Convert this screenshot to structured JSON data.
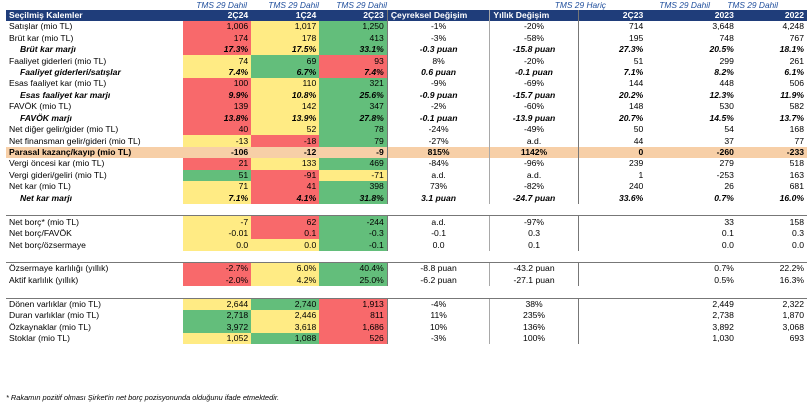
{
  "captions": {
    "c2q23": "TMS 29 Dahil",
    "c1q24": "TMS 29 Dahil",
    "c2q24": "TMS 29 Dahil",
    "c2q23h": "TMS 29 Hariç",
    "c2023": "TMS 29 Dahil",
    "c2022": "TMS 29 Dahil"
  },
  "header": [
    "Seçilmiş Kalemler",
    "2Ç24",
    "1Ç24",
    "2Ç23",
    "Çeyreksel Değişim",
    "Yıllık Değişim",
    "2Ç23",
    "2023",
    "2022"
  ],
  "rows": [
    {
      "label": "Satışlar (mio TL)",
      "v": [
        "1,006",
        "1,017",
        "1,250"
      ],
      "c": [
        "red",
        "yellow",
        "green"
      ],
      "q": "-1%",
      "y": "-20%",
      "h": [
        "714",
        "3,648",
        "4,248"
      ]
    },
    {
      "label": "Brüt kar (mio TL)",
      "v": [
        "174",
        "178",
        "413"
      ],
      "c": [
        "red",
        "yellow",
        "green"
      ],
      "q": "-3%",
      "y": "-58%",
      "h": [
        "195",
        "748",
        "767"
      ]
    },
    {
      "label": "Brüt kar marjı",
      "v": [
        "17.3%",
        "17.5%",
        "33.1%"
      ],
      "c": [
        "red",
        "yellow",
        "green"
      ],
      "q": "-0.3 puan",
      "y": "-15.8 puan",
      "h": [
        "27.3%",
        "20.5%",
        "18.1%"
      ],
      "bi": true
    },
    {
      "label": "Faaliyet giderleri (mio TL)",
      "v": [
        "74",
        "69",
        "93"
      ],
      "c": [
        "yellow",
        "green",
        "red"
      ],
      "q": "8%",
      "y": "-20%",
      "h": [
        "51",
        "299",
        "261"
      ]
    },
    {
      "label": "Faaliyet giderleri/satışlar",
      "v": [
        "7.4%",
        "6.7%",
        "7.4%"
      ],
      "c": [
        "yellow",
        "green",
        "red"
      ],
      "q": "0.6 puan",
      "y": "-0.1 puan",
      "h": [
        "7.1%",
        "8.2%",
        "6.1%"
      ],
      "bi": true
    },
    {
      "label": "Esas faaliyet kar (mio TL)",
      "v": [
        "100",
        "110",
        "321"
      ],
      "c": [
        "red",
        "yellow",
        "green"
      ],
      "q": "-9%",
      "y": "-69%",
      "h": [
        "144",
        "448",
        "506"
      ]
    },
    {
      "label": "Esas faaliyet kar marjı",
      "v": [
        "9.9%",
        "10.8%",
        "25.6%"
      ],
      "c": [
        "red",
        "yellow",
        "green"
      ],
      "q": "-0.9 puan",
      "y": "-15.7 puan",
      "h": [
        "20.2%",
        "12.3%",
        "11.9%"
      ],
      "bi": true
    },
    {
      "label": "FAVÖK (mio TL)",
      "v": [
        "139",
        "142",
        "347"
      ],
      "c": [
        "red",
        "yellow",
        "green"
      ],
      "q": "-2%",
      "y": "-60%",
      "h": [
        "148",
        "530",
        "582"
      ]
    },
    {
      "label": "FAVÖK marjı",
      "v": [
        "13.8%",
        "13.9%",
        "27.8%"
      ],
      "c": [
        "red",
        "yellow",
        "green"
      ],
      "q": "-0.1 puan",
      "y": "-13.9 puan",
      "h": [
        "20.7%",
        "14.5%",
        "13.7%"
      ],
      "bi": true
    },
    {
      "label": "Net diğer gelir/gider (mio TL)",
      "v": [
        "40",
        "52",
        "78"
      ],
      "c": [
        "red",
        "yellow",
        "green"
      ],
      "q": "-24%",
      "y": "-49%",
      "h": [
        "50",
        "54",
        "168"
      ]
    },
    {
      "label": "Net finansman gelir/gideri (mio TL)",
      "v": [
        "-13",
        "-18",
        "79"
      ],
      "c": [
        "yellow",
        "red",
        "green"
      ],
      "q": "-27%",
      "y": "a.d.",
      "h": [
        "44",
        "37",
        "77"
      ]
    },
    {
      "label": "Parasal kazanç/kayıp (mio TL)",
      "v": [
        "-106",
        "-12",
        "-9"
      ],
      "c": [
        "",
        "",
        ""
      ],
      "q": "815%",
      "y": "1142%",
      "h": [
        "0",
        "-260",
        "-233"
      ],
      "par": true
    },
    {
      "label": "Vergi öncesi kar (mio TL)",
      "v": [
        "21",
        "133",
        "469"
      ],
      "c": [
        "red",
        "yellow",
        "green"
      ],
      "q": "-84%",
      "y": "-96%",
      "h": [
        "239",
        "279",
        "518"
      ]
    },
    {
      "label": "Vergi gideri/geliri (mio TL)",
      "v": [
        "51",
        "-91",
        "-71"
      ],
      "c": [
        "green",
        "red",
        "yellow"
      ],
      "q": "a.d.",
      "y": "a.d.",
      "h": [
        "1",
        "-253",
        "163"
      ]
    },
    {
      "label": "Net kar (mio TL)",
      "v": [
        "71",
        "41",
        "398"
      ],
      "c": [
        "yellow",
        "red",
        "green"
      ],
      "q": "73%",
      "y": "-82%",
      "h": [
        "240",
        "26",
        "681"
      ]
    },
    {
      "label": "Net kar marjı",
      "v": [
        "7.1%",
        "4.1%",
        "31.8%"
      ],
      "c": [
        "yellow",
        "red",
        "green"
      ],
      "q": "3.1 puan",
      "y": "-24.7 puan",
      "h": [
        "33.6%",
        "0.7%",
        "16.0%"
      ],
      "bi": true
    },
    {
      "spacer": true
    },
    {
      "label": "Net borç* (mio TL)",
      "v": [
        "-7",
        "62",
        "-244"
      ],
      "c": [
        "yellow",
        "red",
        "green"
      ],
      "q": "a.d.",
      "y": "-97%",
      "h": [
        "",
        "33",
        "158"
      ],
      "topline": true
    },
    {
      "label": "Net borç/FAVÖK",
      "v": [
        "-0.01",
        "0.1",
        "-0.3"
      ],
      "c": [
        "yellow",
        "red",
        "green"
      ],
      "q": "-0.1",
      "y": "0.3",
      "h": [
        "",
        "0.1",
        "0.3"
      ]
    },
    {
      "label": "Net borç/özsermaye",
      "v": [
        "0.0",
        "0.0",
        "-0.1"
      ],
      "c": [
        "yellow",
        "yellow",
        "green"
      ],
      "q": "0.0",
      "y": "0.1",
      "h": [
        "",
        "0.0",
        "0.0"
      ]
    },
    {
      "spacer": true
    },
    {
      "label": "Özsermaye karlılığı (yıllık)",
      "v": [
        "-2.7%",
        "6.0%",
        "40.4%"
      ],
      "c": [
        "red",
        "yellow",
        "green"
      ],
      "q": "-8.8 puan",
      "y": "-43.2 puan",
      "h": [
        "",
        "0.7%",
        "22.2%"
      ],
      "topline": true
    },
    {
      "label": "Aktif karlılık (yıllık)",
      "v": [
        "-2.0%",
        "4.2%",
        "25.0%"
      ],
      "c": [
        "red",
        "yellow",
        "green"
      ],
      "q": "-6.2 puan",
      "y": "-27.1 puan",
      "h": [
        "",
        "0.5%",
        "16.3%"
      ]
    },
    {
      "spacer": true
    },
    {
      "label": "Dönen varlıklar (mio TL)",
      "v": [
        "2,644",
        "2,740",
        "1,913"
      ],
      "c": [
        "yellow",
        "green",
        "red"
      ],
      "q": "-4%",
      "y": "38%",
      "h": [
        "",
        "2,449",
        "2,322"
      ],
      "topline": true
    },
    {
      "label": "Duran varlıklar (mio TL)",
      "v": [
        "2,718",
        "2,446",
        "811"
      ],
      "c": [
        "green",
        "yellow",
        "red"
      ],
      "q": "11%",
      "y": "235%",
      "h": [
        "",
        "2,738",
        "1,870"
      ]
    },
    {
      "label": "Özkaynaklar (mio TL)",
      "v": [
        "3,972",
        "3,618",
        "1,686"
      ],
      "c": [
        "green",
        "yellow",
        "red"
      ],
      "q": "10%",
      "y": "136%",
      "h": [
        "",
        "3,892",
        "3,068"
      ]
    },
    {
      "label": "Stoklar (mio TL)",
      "v": [
        "1,052",
        "1,088",
        "526"
      ],
      "c": [
        "yellow",
        "green",
        "red"
      ],
      "q": "-3%",
      "y": "100%",
      "h": [
        "",
        "1,030",
        "693"
      ]
    }
  ],
  "footnote": "* Rakamın pozitif olması Şirket'in net borç pozisyonunda olduğunu ifade etmektedir."
}
